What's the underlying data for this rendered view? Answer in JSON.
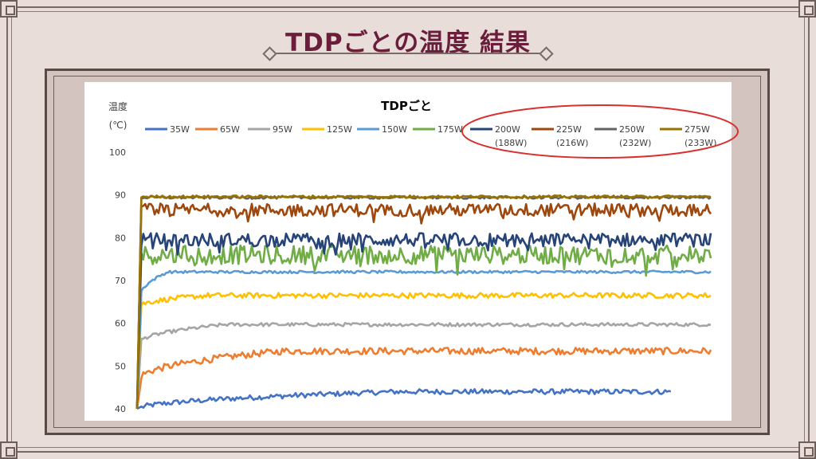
{
  "slide": {
    "title": "TDPごとの温度 結果"
  },
  "chart_data": {
    "type": "line",
    "title": "TDPごと",
    "ylabel_line1": "温度",
    "ylabel_line2": "(℃)",
    "ylim": [
      40,
      100
    ],
    "yticks": [
      40,
      50,
      60,
      70,
      80,
      90,
      100
    ],
    "legend_placement": "top",
    "highlighted_legend": [
      "200W",
      "225W",
      "250W",
      "275W"
    ],
    "series": [
      {
        "name": "35W",
        "sub": "",
        "color": "#4472c4",
        "start": 40,
        "steady": 44,
        "jitter": 0.6,
        "rise": 0.45,
        "end": 0.93
      },
      {
        "name": "65W",
        "sub": "",
        "color": "#ed7d31",
        "start": 47,
        "steady": 53.5,
        "jitter": 0.8,
        "rise": 0.25,
        "end": 1.0
      },
      {
        "name": "95W",
        "sub": "",
        "color": "#a5a5a5",
        "start": 55.5,
        "steady": 59.7,
        "jitter": 0.4,
        "rise": 0.15,
        "end": 1.0
      },
      {
        "name": "125W",
        "sub": "",
        "color": "#ffc000",
        "start": 64,
        "steady": 66.5,
        "jitter": 0.6,
        "rise": 0.12,
        "end": 1.0
      },
      {
        "name": "150W",
        "sub": "",
        "color": "#5b9bd5",
        "start": 66,
        "steady": 72,
        "jitter": 0.3,
        "rise": 0.05,
        "end": 1.0
      },
      {
        "name": "175W",
        "sub": "",
        "color": "#70ad47",
        "start": 74,
        "steady": 76,
        "jitter": 2.2,
        "rise": 0.0,
        "end": 1.0
      },
      {
        "name": "200W",
        "sub": "(188W)",
        "color": "#264478",
        "start": 78,
        "steady": 79.5,
        "jitter": 1.6,
        "rise": 0.0,
        "end": 1.0
      },
      {
        "name": "225W",
        "sub": "(216W)",
        "color": "#9e480e",
        "start": 85,
        "steady": 86.5,
        "jitter": 1.5,
        "rise": 0.0,
        "end": 1.0
      },
      {
        "name": "250W",
        "sub": "(232W)",
        "color": "#636363",
        "start": 89,
        "steady": 89.4,
        "jitter": 0.3,
        "rise": 0.0,
        "end": 1.0
      },
      {
        "name": "275W",
        "sub": "(233W)",
        "color": "#997300",
        "start": 89.5,
        "steady": 89.6,
        "jitter": 0.3,
        "rise": 0.0,
        "end": 1.0
      }
    ]
  }
}
